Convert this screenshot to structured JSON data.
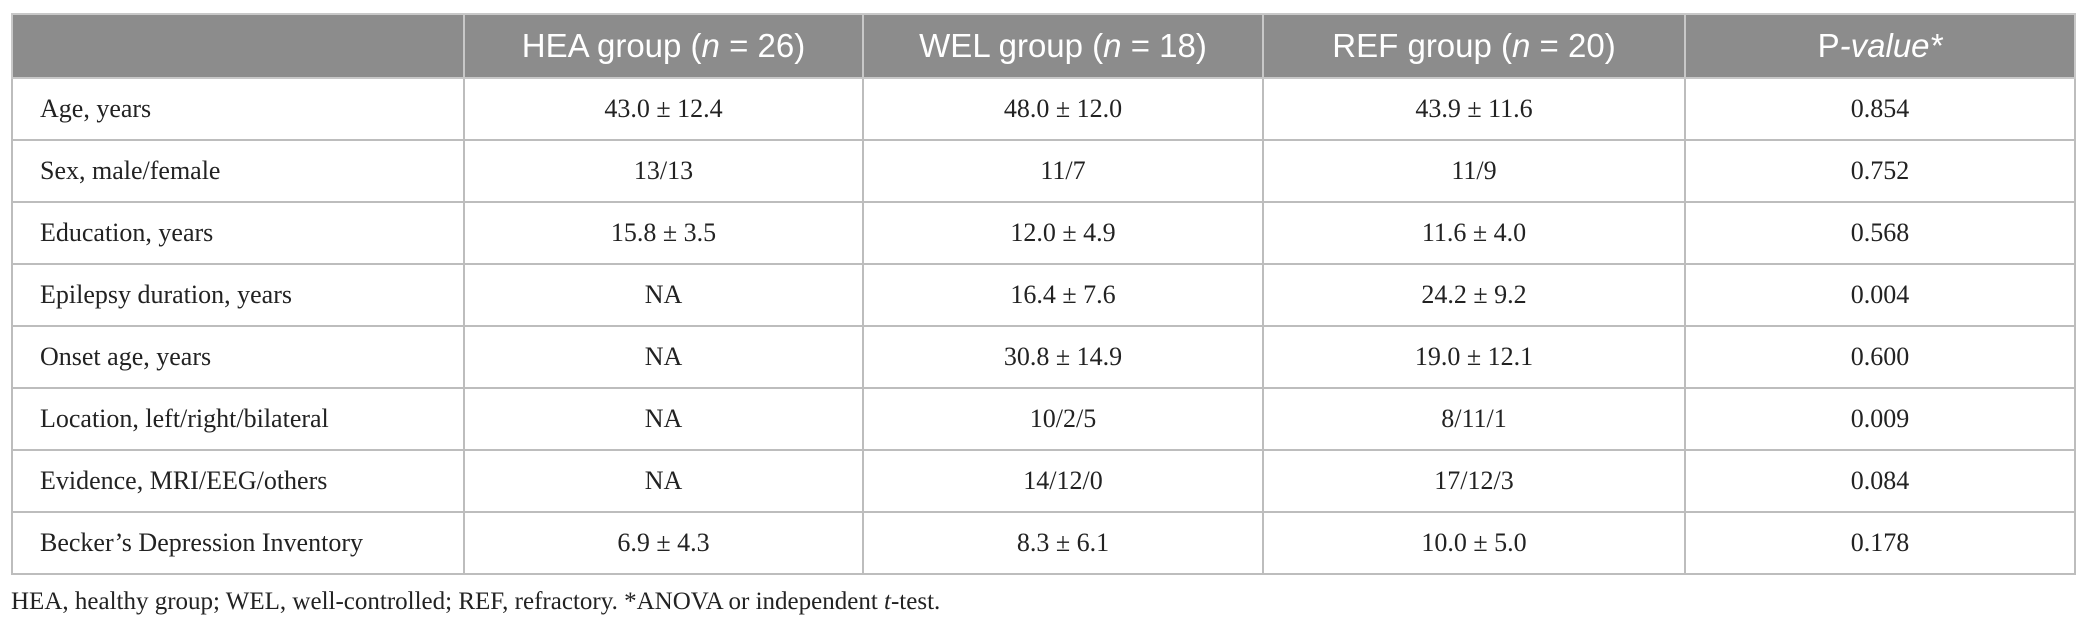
{
  "table": {
    "header": [
      [
        ""
      ],
      [
        "HEA group (",
        "n",
        " = 26)"
      ],
      [
        "WEL group (",
        "n",
        " = 18)"
      ],
      [
        "REF group (",
        "n",
        " = 20)"
      ],
      [
        "P",
        "-value*"
      ]
    ],
    "rows": [
      [
        "Age, years",
        "43.0 ± 12.4",
        "48.0 ± 12.0",
        "43.9 ± 11.6",
        "0.854"
      ],
      [
        "Sex, male/female",
        "13/13",
        "11/7",
        "11/9",
        "0.752"
      ],
      [
        "Education, years",
        "15.8 ± 3.5",
        "12.0 ± 4.9",
        "11.6 ± 4.0",
        "0.568"
      ],
      [
        "Epilepsy duration, years",
        "NA",
        "16.4 ± 7.6",
        "24.2 ± 9.2",
        "0.004"
      ],
      [
        "Onset age, years",
        "NA",
        "30.8 ± 14.9",
        "19.0 ± 12.1",
        "0.600"
      ],
      [
        "Location, left/right/bilateral",
        "NA",
        "10/2/5",
        "8/11/1",
        "0.009"
      ],
      [
        "Evidence, MRI/EEG/others",
        "NA",
        "14/12/0",
        "17/12/3",
        "0.084"
      ],
      [
        "Becker’s Depression Inventory",
        "6.9 ± 4.3",
        "8.3 ± 6.1",
        "10.0 ± 5.0",
        "0.178"
      ]
    ]
  },
  "footnote": [
    "HEA, healthy group; WEL, well-controlled; REF, refractory. *ANOVA or independent ",
    "t",
    "-test."
  ]
}
